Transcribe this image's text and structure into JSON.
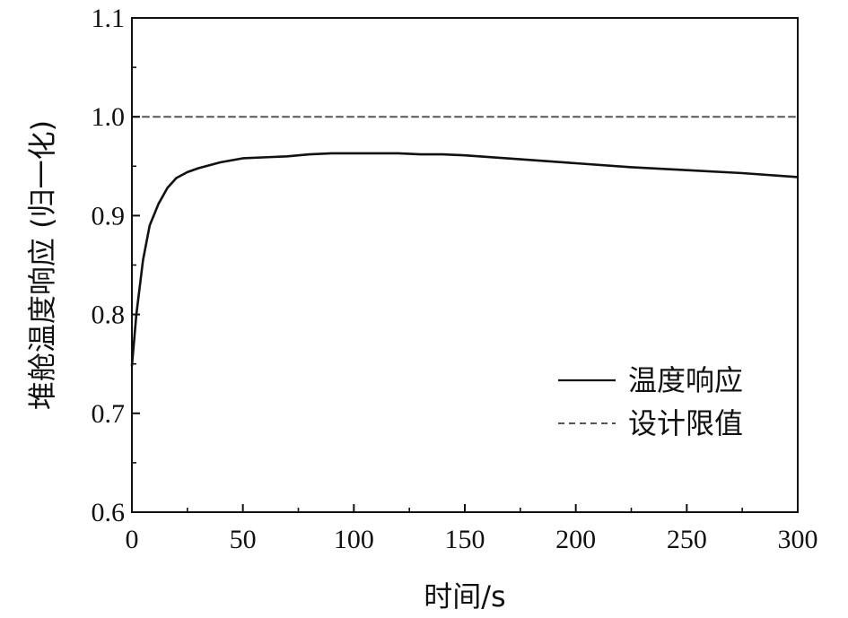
{
  "chart_data": {
    "type": "line",
    "title": "",
    "xlabel": "时间/s",
    "ylabel": "堆舱温度响应 (归一化)",
    "xlim": [
      0,
      300
    ],
    "ylim": [
      0.6,
      1.1
    ],
    "xticks": [
      0,
      50,
      100,
      150,
      200,
      250,
      300
    ],
    "yticks": [
      0.6,
      0.7,
      0.8,
      0.9,
      1.0,
      1.1
    ],
    "xtick_labels": [
      "0",
      "50",
      "100",
      "150",
      "200",
      "250",
      "300"
    ],
    "ytick_labels": [
      "0.6",
      "0.7",
      "0.8",
      "0.9",
      "1.0",
      "1.1"
    ],
    "grid": false,
    "legend_position": "bottom-right",
    "series": [
      {
        "name": "温度响应",
        "style": "solid",
        "color": "#111111",
        "x": [
          0,
          2,
          5,
          8,
          12,
          16,
          20,
          25,
          30,
          40,
          50,
          60,
          70,
          80,
          90,
          100,
          110,
          120,
          130,
          140,
          150,
          175,
          200,
          225,
          250,
          275,
          300
        ],
        "y": [
          0.748,
          0.8,
          0.855,
          0.89,
          0.912,
          0.928,
          0.938,
          0.944,
          0.948,
          0.954,
          0.958,
          0.959,
          0.96,
          0.962,
          0.963,
          0.963,
          0.963,
          0.963,
          0.962,
          0.962,
          0.961,
          0.957,
          0.953,
          0.949,
          0.946,
          0.943,
          0.939
        ]
      },
      {
        "name": "设计限值",
        "style": "dashed",
        "color": "#555555",
        "x": [
          0,
          300
        ],
        "y": [
          1.0,
          1.0
        ]
      }
    ]
  }
}
